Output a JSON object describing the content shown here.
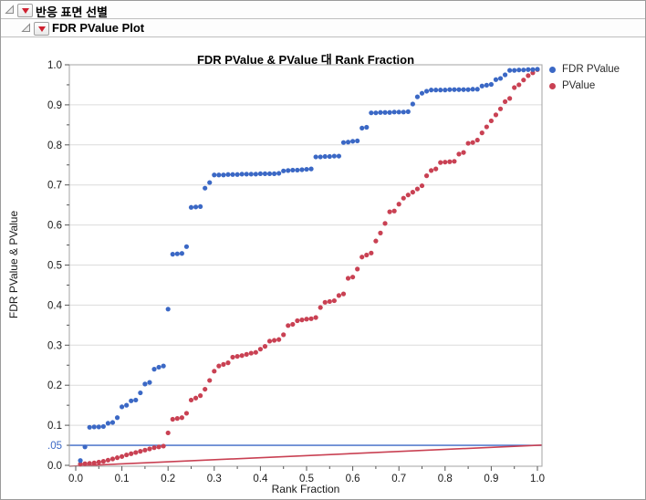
{
  "outline": {
    "level1_title": "반응 표면 선별",
    "level2_title": "FDR PValue Plot"
  },
  "colors": {
    "fdr_blue": "#3b68c5",
    "pvalue_red": "#c94153",
    "grid": "#dcdcdc",
    "frame": "#a3a3a3",
    "tick": "#555555",
    "menu_triangle_red": "#cf2030"
  },
  "chart_data": {
    "type": "scatter",
    "title": "FDR PValue & PValue 대 Rank Fraction",
    "xlabel": "Rank Fraction",
    "ylabel": "FDR PValue & PValue",
    "xlim": [
      0,
      1
    ],
    "ylim": [
      0,
      1
    ],
    "grid": "horizontal",
    "legend_position": "right-top",
    "x_tick_labels": [
      "0.0",
      "0.1",
      "0.2",
      "0.3",
      "0.4",
      "0.5",
      "0.6",
      "0.7",
      "0.8",
      "0.9",
      "1.0"
    ],
    "y_tick_labels": [
      "0.0",
      "0.1",
      "0.2",
      "0.3",
      "0.4",
      "0.5",
      "0.6",
      "0.7",
      "0.8",
      "0.9",
      "1.0"
    ],
    "special_y_tick": {
      "value": 0.05,
      "label": ".05",
      "color": "#3b68c5"
    },
    "reference_lines": [
      {
        "kind": "horizontal",
        "y": 0.05,
        "color": "#3b68c5"
      },
      {
        "kind": "segment",
        "from": [
          0,
          0
        ],
        "to": [
          1,
          0.05
        ],
        "color": "#c94153"
      }
    ],
    "x": [
      0.01,
      0.02,
      0.03,
      0.04,
      0.05,
      0.06,
      0.07,
      0.08,
      0.09,
      0.1,
      0.11,
      0.12,
      0.13,
      0.14,
      0.15,
      0.16,
      0.17,
      0.18,
      0.19,
      0.2,
      0.21,
      0.22,
      0.23,
      0.24,
      0.25,
      0.26,
      0.27,
      0.28,
      0.29,
      0.3,
      0.31,
      0.32,
      0.33,
      0.34,
      0.35,
      0.36,
      0.37,
      0.38,
      0.39,
      0.4,
      0.41,
      0.42,
      0.43,
      0.44,
      0.45,
      0.46,
      0.47,
      0.48,
      0.49,
      0.5,
      0.51,
      0.52,
      0.53,
      0.54,
      0.55,
      0.56,
      0.57,
      0.58,
      0.59,
      0.6,
      0.61,
      0.62,
      0.63,
      0.64,
      0.65,
      0.66,
      0.67,
      0.68,
      0.69,
      0.7,
      0.71,
      0.72,
      0.73,
      0.74,
      0.75,
      0.76,
      0.77,
      0.78,
      0.79,
      0.8,
      0.81,
      0.82,
      0.83,
      0.84,
      0.85,
      0.86,
      0.87,
      0.88,
      0.89,
      0.9,
      0.91,
      0.92,
      0.93,
      0.94,
      0.95,
      0.96,
      0.97,
      0.98,
      0.99,
      1.0
    ],
    "series": [
      {
        "name": "FDR PValue",
        "color": "#3b68c5",
        "values": [
          0.012,
          0.046,
          0.095,
          0.096,
          0.096,
          0.097,
          0.105,
          0.107,
          0.119,
          0.146,
          0.15,
          0.161,
          0.163,
          0.181,
          0.203,
          0.207,
          0.24,
          0.245,
          0.248,
          0.39,
          0.527,
          0.528,
          0.529,
          0.546,
          0.644,
          0.645,
          0.646,
          0.692,
          0.706,
          0.725,
          0.725,
          0.725,
          0.726,
          0.726,
          0.726,
          0.727,
          0.727,
          0.727,
          0.727,
          0.728,
          0.728,
          0.728,
          0.728,
          0.729,
          0.735,
          0.736,
          0.737,
          0.737,
          0.738,
          0.739,
          0.74,
          0.77,
          0.77,
          0.771,
          0.771,
          0.772,
          0.772,
          0.806,
          0.807,
          0.809,
          0.81,
          0.842,
          0.844,
          0.88,
          0.88,
          0.881,
          0.881,
          0.881,
          0.882,
          0.882,
          0.882,
          0.883,
          0.902,
          0.92,
          0.929,
          0.934,
          0.937,
          0.937,
          0.937,
          0.937,
          0.938,
          0.938,
          0.938,
          0.938,
          0.938,
          0.939,
          0.939,
          0.947,
          0.949,
          0.951,
          0.963,
          0.966,
          0.975,
          0.986,
          0.986,
          0.987,
          0.987,
          0.988,
          0.988,
          0.989
        ]
      },
      {
        "name": "PValue",
        "color": "#c94153",
        "values": [
          0.003,
          0.004,
          0.005,
          0.006,
          0.008,
          0.01,
          0.013,
          0.016,
          0.019,
          0.022,
          0.026,
          0.029,
          0.032,
          0.035,
          0.038,
          0.041,
          0.044,
          0.046,
          0.048,
          0.081,
          0.115,
          0.117,
          0.119,
          0.13,
          0.163,
          0.168,
          0.174,
          0.19,
          0.212,
          0.235,
          0.248,
          0.252,
          0.256,
          0.27,
          0.272,
          0.274,
          0.277,
          0.28,
          0.282,
          0.29,
          0.297,
          0.31,
          0.312,
          0.314,
          0.326,
          0.349,
          0.352,
          0.361,
          0.363,
          0.365,
          0.366,
          0.369,
          0.394,
          0.407,
          0.409,
          0.411,
          0.424,
          0.428,
          0.467,
          0.47,
          0.49,
          0.52,
          0.525,
          0.53,
          0.56,
          0.58,
          0.604,
          0.633,
          0.635,
          0.652,
          0.667,
          0.675,
          0.682,
          0.69,
          0.698,
          0.723,
          0.736,
          0.74,
          0.756,
          0.757,
          0.758,
          0.759,
          0.777,
          0.781,
          0.804,
          0.806,
          0.812,
          0.83,
          0.845,
          0.86,
          0.875,
          0.89,
          0.908,
          0.916,
          0.943,
          0.95,
          0.962,
          0.973,
          0.98,
          0.988
        ]
      }
    ]
  }
}
